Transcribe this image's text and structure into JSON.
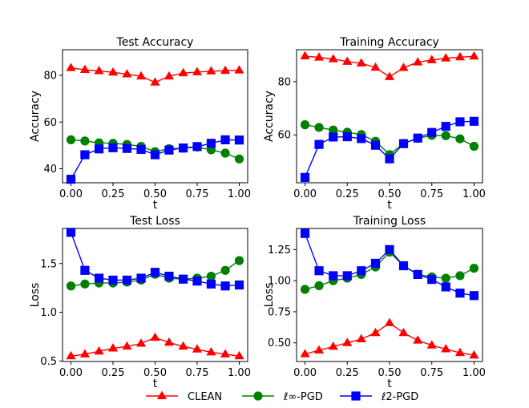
{
  "legend": {
    "placement": "bottom-center",
    "entries": [
      {
        "series": "clean",
        "label": "CLEAN",
        "color": "#ff0000",
        "marker": "triangle-up"
      },
      {
        "series": "linf",
        "label": "ℓ∞-PGD",
        "color": "#008000",
        "marker": "circle"
      },
      {
        "series": "l2",
        "label": "ℓ2-PGD",
        "color": "#0000ff",
        "marker": "square"
      }
    ]
  },
  "chart_data": [
    {
      "type": "line",
      "title": "Test Accuracy",
      "xlabel": "t",
      "ylabel": "Accuracy",
      "xlim": [
        -0.05,
        1.05
      ],
      "ylim": [
        34,
        91
      ],
      "xticks": [
        0.0,
        0.25,
        0.5,
        0.75,
        1.0
      ],
      "xtick_labels": [
        "0.00",
        "0.25",
        "0.50",
        "0.75",
        "1.00"
      ],
      "yticks": [
        40,
        60,
        80
      ],
      "ytick_labels": [
        "40",
        "60",
        "80"
      ],
      "x": [
        0.0,
        0.083,
        0.167,
        0.25,
        0.333,
        0.417,
        0.5,
        0.583,
        0.667,
        0.75,
        0.833,
        0.917,
        1.0
      ],
      "series": [
        {
          "name": "CLEAN",
          "values": [
            83.2,
            82.4,
            81.9,
            81.3,
            80.5,
            79.6,
            77.0,
            79.6,
            81.0,
            81.4,
            81.8,
            82.0,
            82.2
          ]
        },
        {
          "name": "ℓ∞-PGD",
          "values": [
            52.4,
            51.9,
            51.1,
            50.9,
            50.4,
            49.6,
            47.3,
            48.6,
            48.8,
            49.3,
            48.1,
            46.7,
            44.2
          ]
        },
        {
          "name": "ℓ2-PGD",
          "values": [
            35.5,
            46.0,
            48.5,
            49.0,
            48.7,
            48.3,
            46.0,
            48.0,
            48.9,
            49.5,
            50.9,
            52.4,
            52.3
          ]
        }
      ]
    },
    {
      "type": "line",
      "title": "Training Accuracy",
      "xlabel": "t",
      "ylabel": "Accuracy",
      "xlim": [
        -0.05,
        1.05
      ],
      "ylim": [
        42,
        92
      ],
      "xticks": [
        0.0,
        0.25,
        0.5,
        0.75,
        1.0
      ],
      "xtick_labels": [
        "0.00",
        "0.25",
        "0.50",
        "0.75",
        "1.00"
      ],
      "yticks": [
        60,
        80
      ],
      "ytick_labels": [
        "60",
        "80"
      ],
      "x": [
        0.0,
        0.083,
        0.167,
        0.25,
        0.333,
        0.417,
        0.5,
        0.583,
        0.667,
        0.75,
        0.833,
        0.917,
        1.0
      ],
      "series": [
        {
          "name": "CLEAN",
          "values": [
            89.6,
            89.1,
            88.5,
            87.5,
            86.9,
            85.3,
            81.8,
            85.2,
            87.3,
            88.1,
            88.8,
            89.2,
            89.5
          ]
        },
        {
          "name": "ℓ∞-PGD",
          "values": [
            63.8,
            62.8,
            61.8,
            61.0,
            60.1,
            57.6,
            52.6,
            56.8,
            58.7,
            59.8,
            59.7,
            58.5,
            55.7
          ]
        },
        {
          "name": "ℓ2-PGD",
          "values": [
            44.0,
            56.4,
            59.2,
            59.3,
            58.6,
            56.1,
            51.0,
            56.7,
            58.8,
            60.9,
            63.2,
            64.9,
            65.1
          ]
        }
      ]
    },
    {
      "type": "line",
      "title": "Test Loss",
      "xlabel": "t",
      "ylabel": "Loss",
      "xlim": [
        -0.05,
        1.05
      ],
      "ylim": [
        0.495,
        1.86
      ],
      "xticks": [
        0.0,
        0.25,
        0.5,
        0.75,
        1.0
      ],
      "xtick_labels": [
        "0.00",
        "0.25",
        "0.50",
        "0.75",
        "1.00"
      ],
      "yticks": [
        0.5,
        1.0,
        1.5
      ],
      "ytick_labels": [
        "0.5",
        "1.0",
        "1.5"
      ],
      "x": [
        0.0,
        0.083,
        0.167,
        0.25,
        0.333,
        0.417,
        0.5,
        0.583,
        0.667,
        0.75,
        0.833,
        0.917,
        1.0
      ],
      "series": [
        {
          "name": "CLEAN",
          "values": [
            0.55,
            0.57,
            0.6,
            0.63,
            0.65,
            0.68,
            0.74,
            0.69,
            0.65,
            0.62,
            0.59,
            0.57,
            0.55
          ]
        },
        {
          "name": "ℓ∞-PGD",
          "values": [
            1.27,
            1.29,
            1.3,
            1.3,
            1.31,
            1.33,
            1.39,
            1.35,
            1.34,
            1.35,
            1.37,
            1.43,
            1.53
          ]
        },
        {
          "name": "ℓ2-PGD",
          "values": [
            1.82,
            1.43,
            1.35,
            1.33,
            1.33,
            1.35,
            1.41,
            1.37,
            1.34,
            1.32,
            1.29,
            1.27,
            1.28
          ]
        }
      ]
    },
    {
      "type": "line",
      "title": "Training Loss",
      "xlabel": "t",
      "ylabel": "Loss",
      "xlim": [
        -0.05,
        1.05
      ],
      "ylim": [
        0.35,
        1.42
      ],
      "xticks": [
        0.0,
        0.25,
        0.5,
        0.75,
        1.0
      ],
      "xtick_labels": [
        "0.00",
        "0.25",
        "0.50",
        "0.75",
        "1.00"
      ],
      "yticks": [
        0.5,
        0.75,
        1.0,
        1.25
      ],
      "ytick_labels": [
        "0.50",
        "0.75",
        "1.00",
        "1.25"
      ],
      "x": [
        0.0,
        0.083,
        0.167,
        0.25,
        0.333,
        0.417,
        0.5,
        0.583,
        0.667,
        0.75,
        0.833,
        0.917,
        1.0
      ],
      "series": [
        {
          "name": "CLEAN",
          "values": [
            0.41,
            0.44,
            0.47,
            0.5,
            0.53,
            0.58,
            0.66,
            0.58,
            0.52,
            0.48,
            0.45,
            0.42,
            0.4
          ]
        },
        {
          "name": "ℓ∞-PGD",
          "values": [
            0.93,
            0.96,
            1.0,
            1.02,
            1.05,
            1.11,
            1.23,
            1.12,
            1.05,
            1.03,
            1.02,
            1.04,
            1.1
          ]
        },
        {
          "name": "ℓ2-PGD",
          "values": [
            1.38,
            1.08,
            1.04,
            1.04,
            1.08,
            1.14,
            1.25,
            1.12,
            1.05,
            1.01,
            0.95,
            0.9,
            0.88
          ]
        }
      ]
    }
  ]
}
